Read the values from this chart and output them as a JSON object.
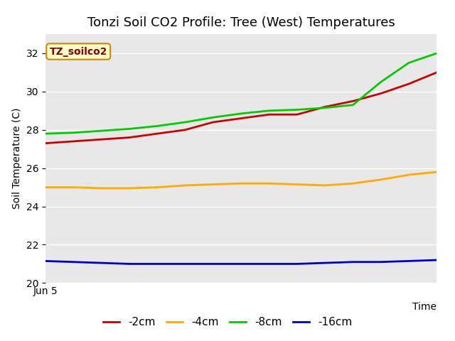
{
  "title": "Tonzi Soil CO2 Profile: Tree (West) Temperatures",
  "xlabel": "Time",
  "ylabel": "Soil Temperature (C)",
  "annotation": "TZ_soilco2",
  "ylim": [
    20,
    33
  ],
  "yticks": [
    20,
    22,
    24,
    26,
    28,
    30,
    32
  ],
  "x_label_start": "Jun 5",
  "background_color": "#e8e8e8",
  "series": {
    "-2cm": {
      "color": "#cc0000",
      "values": [
        27.3,
        27.4,
        27.5,
        27.6,
        27.8,
        28.0,
        28.4,
        28.6,
        28.8,
        28.8,
        29.2,
        29.5,
        29.9,
        30.4,
        31.0
      ]
    },
    "-4cm": {
      "color": "#ffaa00",
      "values": [
        25.0,
        25.0,
        24.95,
        24.95,
        25.0,
        25.1,
        25.15,
        25.2,
        25.2,
        25.15,
        25.1,
        25.2,
        25.4,
        25.65,
        25.8
      ]
    },
    "-8cm": {
      "color": "#00cc00",
      "values": [
        27.8,
        27.85,
        27.95,
        28.05,
        28.2,
        28.4,
        28.65,
        28.85,
        29.0,
        29.05,
        29.15,
        29.3,
        30.5,
        31.5,
        32.0
      ]
    },
    "-16cm": {
      "color": "#0000cc",
      "values": [
        21.15,
        21.1,
        21.05,
        21.0,
        21.0,
        21.0,
        21.0,
        21.0,
        21.0,
        21.0,
        21.05,
        21.1,
        21.1,
        21.15,
        21.2
      ]
    }
  },
  "annotation_bg": "#ffffcc",
  "annotation_border": "#cc8800",
  "annotation_text_color": "#880000",
  "title_fontsize": 13,
  "axis_label_fontsize": 10,
  "tick_fontsize": 10,
  "legend_fontsize": 11
}
